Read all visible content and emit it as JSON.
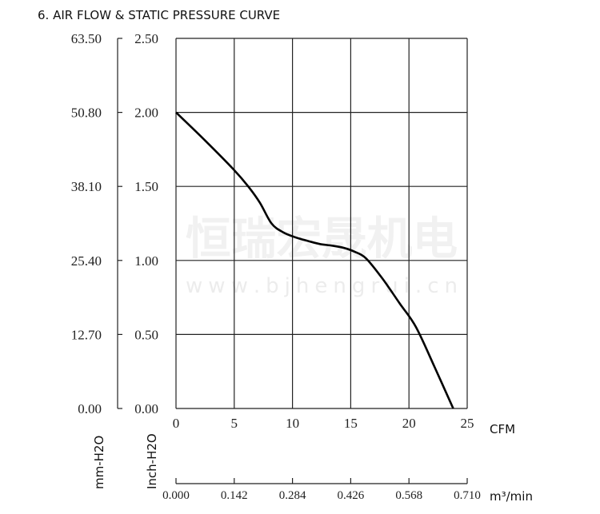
{
  "chart_data": {
    "type": "line",
    "title": "6. AIR FLOW & STATIC PRESSURE CURVE",
    "xlabel": "CFM",
    "xlabel_secondary": "m³/min",
    "ylabel": "Inch-H2O",
    "ylabel_secondary": "mm-H2O",
    "xlim": [
      0,
      25
    ],
    "ylim": [
      0,
      2.5
    ],
    "x_ticks": [
      "0",
      "5",
      "10",
      "15",
      "20",
      "25"
    ],
    "x_ticks_secondary": [
      "0.000",
      "0.142",
      "0.284",
      "0.426",
      "0.568",
      "0.710"
    ],
    "y_ticks": [
      "0.00",
      "0.50",
      "1.00",
      "1.50",
      "2.00",
      "2.50"
    ],
    "y_ticks_secondary": [
      "0.00",
      "12.70",
      "25.40",
      "38.10",
      "50.80",
      "63.50"
    ],
    "grid": true,
    "series": [
      {
        "x": [
          0,
          2.5,
          5,
          6.2,
          7.2,
          8.2,
          9.2,
          10.3,
          11.4,
          12.4,
          13.4,
          14.4,
          15.3,
          16.3,
          17.7,
          19.2,
          20.6,
          22.2,
          23.8
        ],
        "y": [
          2.0,
          1.81,
          1.61,
          1.5,
          1.39,
          1.25,
          1.19,
          1.155,
          1.13,
          1.11,
          1.1,
          1.085,
          1.06,
          1.015,
          0.88,
          0.71,
          0.55,
          0.28,
          0.0
        ],
        "color": "#000000"
      }
    ]
  },
  "watermark": {
    "text_cn": "恒瑞宏晟机电",
    "text_url": "w w w . b j h e n g r u i . c n"
  }
}
